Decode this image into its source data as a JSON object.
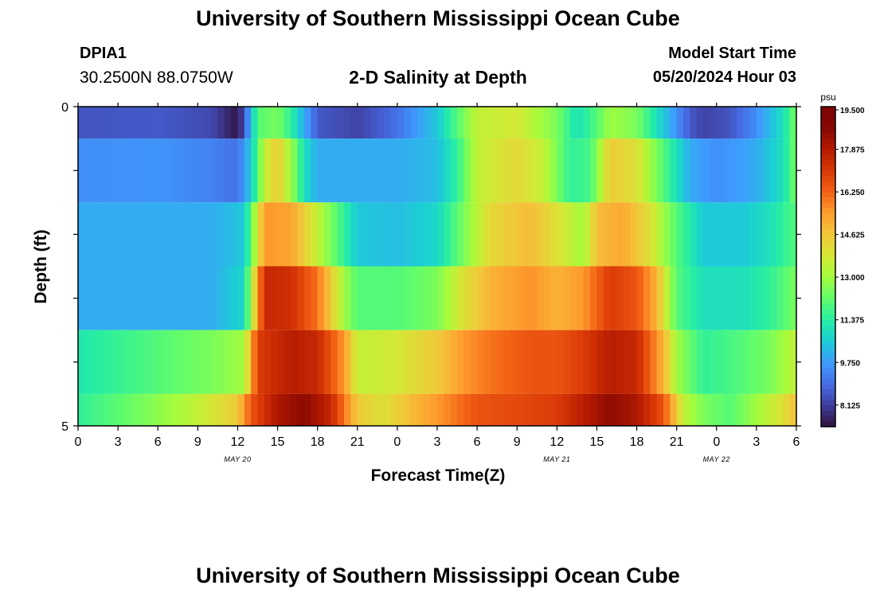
{
  "header": {
    "title": "University of Southern Mississippi Ocean Cube",
    "station_id": "DPIA1",
    "station_coords": "30.2500N  88.0750W",
    "subtitle": "2-D Salinity at Depth",
    "model_start_label": "Model Start Time",
    "model_start_value": "05/20/2024 Hour 03"
  },
  "footer": {
    "title": "University of Southern Mississippi Ocean Cube"
  },
  "chart_data": {
    "type": "heatmap",
    "title": "2-D Salinity at Depth",
    "xlabel": "Forecast Time(Z)",
    "ylabel": "Depth (ft)",
    "x_range_hours": [
      0,
      54
    ],
    "x_tick_labels": [
      "0",
      "3",
      "6",
      "9",
      "12",
      "15",
      "18",
      "21",
      "0",
      "3",
      "6",
      "9",
      "12",
      "15",
      "18",
      "21",
      "0",
      "3",
      "6"
    ],
    "date_labels": [
      {
        "label": "MAY 20",
        "hour": 12
      },
      {
        "label": "MAY 21",
        "hour": 36
      },
      {
        "label": "MAY 22",
        "hour": 48
      }
    ],
    "y_tick_labels": [
      "0",
      "5"
    ],
    "ylim": [
      0,
      5
    ],
    "colorbar": {
      "unit": "psu",
      "min": 7.3,
      "max": 19.5,
      "tick_labels": [
        "19.500",
        "17.875",
        "16.250",
        "14.625",
        "13.000",
        "11.375",
        "9.750",
        "8.125"
      ],
      "tick_values": [
        19.5,
        17.875,
        16.25,
        14.625,
        13.0,
        11.375,
        9.75,
        8.125
      ]
    },
    "rows": [
      {
        "depth_ft": [
          0.0,
          0.5
        ],
        "keyframes": [
          [
            0,
            8.5
          ],
          [
            6,
            8.6
          ],
          [
            10,
            8.3
          ],
          [
            12,
            7.4
          ],
          [
            12.5,
            8.5
          ],
          [
            13.5,
            12.0
          ],
          [
            15,
            12.5
          ],
          [
            16,
            11.5
          ],
          [
            17,
            10.0
          ],
          [
            18,
            8.6
          ],
          [
            21,
            8.2
          ],
          [
            24,
            9.0
          ],
          [
            27,
            10.5
          ],
          [
            28.5,
            12.0
          ],
          [
            30,
            13.5
          ],
          [
            33,
            13.8
          ],
          [
            36,
            12.5
          ],
          [
            37.5,
            11.0
          ],
          [
            39,
            12.0
          ],
          [
            40,
            13.0
          ],
          [
            42,
            12.5
          ],
          [
            44,
            10.5
          ],
          [
            46,
            8.6
          ],
          [
            47,
            8.2
          ],
          [
            49,
            8.5
          ],
          [
            51,
            9.5
          ],
          [
            53,
            11.0
          ],
          [
            54,
            12.5
          ]
        ]
      },
      {
        "depth_ft": [
          0.5,
          1.5
        ],
        "keyframes": [
          [
            0,
            9.5
          ],
          [
            6,
            9.6
          ],
          [
            10,
            9.3
          ],
          [
            12,
            9.0
          ],
          [
            13,
            10.5
          ],
          [
            14,
            13.5
          ],
          [
            15,
            14.5
          ],
          [
            16,
            13.0
          ],
          [
            17,
            11.0
          ],
          [
            18,
            10.0
          ],
          [
            24,
            10.0
          ],
          [
            27,
            10.3
          ],
          [
            28.5,
            11.5
          ],
          [
            30,
            13.5
          ],
          [
            33,
            14.2
          ],
          [
            35,
            13.5
          ],
          [
            37,
            11.5
          ],
          [
            38.5,
            11.8
          ],
          [
            40,
            14.5
          ],
          [
            42,
            14.0
          ],
          [
            44,
            12.0
          ],
          [
            46,
            10.0
          ],
          [
            48,
            9.5
          ],
          [
            51,
            10.0
          ],
          [
            53,
            11.0
          ],
          [
            54,
            12.5
          ]
        ]
      },
      {
        "depth_ft": [
          1.5,
          2.5
        ],
        "keyframes": [
          [
            0,
            10.0
          ],
          [
            10,
            10.0
          ],
          [
            12.5,
            10.5
          ],
          [
            14,
            15.5
          ],
          [
            16,
            15.3
          ],
          [
            18,
            13.5
          ],
          [
            19.5,
            12.0
          ],
          [
            21,
            10.5
          ],
          [
            24,
            10.3
          ],
          [
            27,
            10.8
          ],
          [
            29,
            12.5
          ],
          [
            31,
            14.2
          ],
          [
            34,
            14.8
          ],
          [
            36,
            14.0
          ],
          [
            38,
            13.0
          ],
          [
            39,
            14.8
          ],
          [
            41,
            15.2
          ],
          [
            43,
            14.0
          ],
          [
            45,
            12.0
          ],
          [
            47,
            10.5
          ],
          [
            50,
            10.5
          ],
          [
            52,
            11.0
          ],
          [
            54,
            12.0
          ]
        ]
      },
      {
        "depth_ft": [
          2.5,
          3.5
        ],
        "keyframes": [
          [
            0,
            10.0
          ],
          [
            10,
            10.0
          ],
          [
            12.5,
            10.8
          ],
          [
            14,
            17.5
          ],
          [
            16,
            17.3
          ],
          [
            18,
            16.0
          ],
          [
            19,
            14.5
          ],
          [
            20,
            13.0
          ],
          [
            21,
            12.0
          ],
          [
            24,
            12.0
          ],
          [
            27,
            12.5
          ],
          [
            29,
            14.0
          ],
          [
            31,
            15.0
          ],
          [
            34,
            15.6
          ],
          [
            36,
            15.0
          ],
          [
            38,
            15.5
          ],
          [
            40,
            17.0
          ],
          [
            42,
            16.5
          ],
          [
            43.5,
            15.0
          ],
          [
            45,
            12.0
          ],
          [
            47,
            11.0
          ],
          [
            50,
            11.0
          ],
          [
            52,
            11.5
          ],
          [
            54,
            12.5
          ]
        ]
      },
      {
        "depth_ft": [
          3.5,
          4.5
        ],
        "keyframes": [
          [
            0,
            11.2
          ],
          [
            6,
            12.0
          ],
          [
            10,
            12.5
          ],
          [
            12.5,
            13.0
          ],
          [
            13.5,
            17.0
          ],
          [
            16,
            17.8
          ],
          [
            18,
            17.5
          ],
          [
            20,
            15.5
          ],
          [
            21,
            13.5
          ],
          [
            24,
            13.8
          ],
          [
            27,
            14.5
          ],
          [
            29,
            15.5
          ],
          [
            31,
            16.0
          ],
          [
            34,
            16.5
          ],
          [
            36,
            16.5
          ],
          [
            38,
            17.0
          ],
          [
            40,
            17.8
          ],
          [
            42,
            17.5
          ],
          [
            44,
            15.0
          ],
          [
            45,
            13.0
          ],
          [
            47,
            11.5
          ],
          [
            50,
            12.0
          ],
          [
            52,
            12.5
          ],
          [
            54,
            13.5
          ]
        ]
      },
      {
        "depth_ft": [
          4.5,
          5.0
        ],
        "keyframes": [
          [
            0,
            11.5
          ],
          [
            5,
            12.5
          ],
          [
            9,
            13.5
          ],
          [
            12,
            14.5
          ],
          [
            13,
            16.5
          ],
          [
            15,
            18.0
          ],
          [
            17,
            18.6
          ],
          [
            19,
            17.5
          ],
          [
            20,
            16.0
          ],
          [
            21,
            14.5
          ],
          [
            23,
            14.0
          ],
          [
            25,
            14.8
          ],
          [
            27,
            15.5
          ],
          [
            30,
            16.5
          ],
          [
            34,
            16.8
          ],
          [
            36,
            17.0
          ],
          [
            38,
            17.8
          ],
          [
            40,
            18.5
          ],
          [
            42,
            18.0
          ],
          [
            44,
            16.5
          ],
          [
            45.5,
            13.5
          ],
          [
            47,
            12.5
          ],
          [
            49,
            12.0
          ],
          [
            51,
            13.0
          ],
          [
            53,
            14.0
          ],
          [
            54,
            14.8
          ]
        ]
      }
    ]
  }
}
